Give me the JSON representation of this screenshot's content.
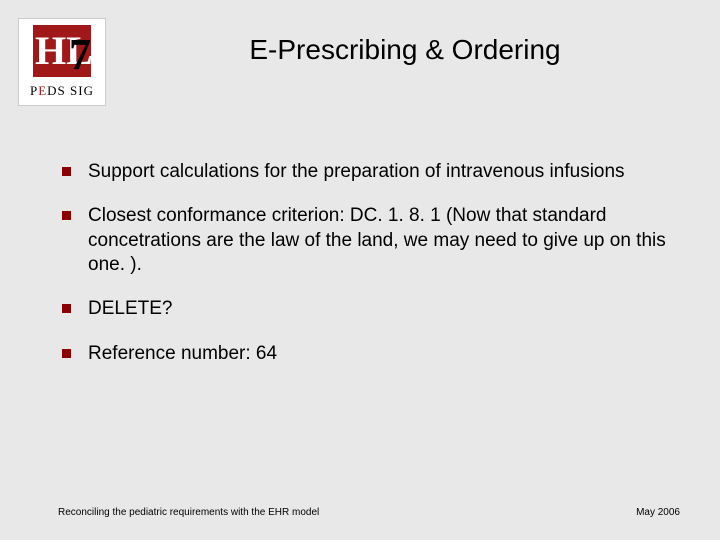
{
  "logo": {
    "top_text": "HL",
    "seven": "7",
    "sub_prefix": "P",
    "sub_red": "E",
    "sub_rest": "DS SIG"
  },
  "title": "E-Prescribing & Ordering",
  "bullets": [
    "Support calculations for the preparation of intravenous infusions",
    "Closest conformance criterion: DC. 1. 8. 1 (Now that standard concetrations are the law of the land, we may need to give up on this one. ).",
    "DELETE?",
    "Reference number: 64"
  ],
  "footer": {
    "left": "Reconciling the pediatric requirements with the EHR model",
    "right": "May 2006"
  },
  "styling": {
    "slide_width": 720,
    "slide_height": 540,
    "background_color": "#e8e8e8",
    "title_fontsize": 28,
    "title_color": "#000000",
    "bullet_fontsize": 19,
    "bullet_marker_color": "#8b0000",
    "bullet_marker_shape": "square",
    "bullet_marker_size": 9,
    "footer_fontsize": 10,
    "font_family": "Verdana",
    "logo_bg": "#ffffff",
    "logo_red": "#a01818"
  }
}
